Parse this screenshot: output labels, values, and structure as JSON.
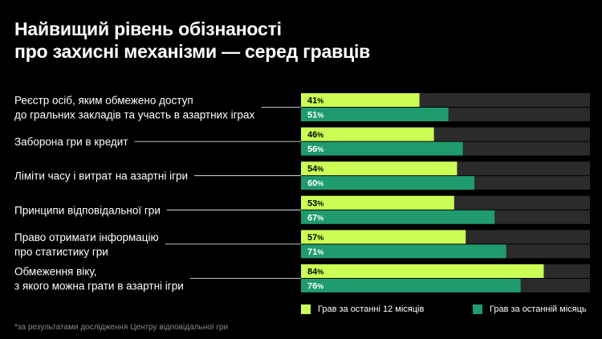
{
  "title": {
    "line1": "Найвищий рівень обізнаності",
    "line2": "про захисні механізми — серед гравців"
  },
  "colors": {
    "background": "#000000",
    "track": "#2b2b2b",
    "series1": "#ccff55",
    "series2": "#1f9b6e",
    "leader": "#ffffff"
  },
  "chart_data": {
    "type": "bar",
    "orientation": "horizontal",
    "xlim": [
      0,
      100
    ],
    "categories": [
      [
        "Реєстр осіб, яким обмежено доступ",
        "до гральних закладів та участь в азартних іграх"
      ],
      [
        "Заборона гри в кредит"
      ],
      [
        "Ліміти часу і витрат на азартні ігри"
      ],
      [
        "Принципи відповідальної гри"
      ],
      [
        "Право отримати інформацію",
        "про статистику гри"
      ],
      [
        "Обмеження віку,",
        "з якого можна грати в азартні ігри"
      ]
    ],
    "series": [
      {
        "name": "Грав за останні 12 місяців",
        "values": [
          41,
          46,
          54,
          53,
          57,
          84
        ]
      },
      {
        "name": "Грав за останній місяць",
        "values": [
          51,
          56,
          60,
          67,
          71,
          76
        ]
      }
    ],
    "value_suffix": "%",
    "legend_position": "bottom-right"
  },
  "footnote": "*за результатами дослідження Центру відповідальної гри"
}
